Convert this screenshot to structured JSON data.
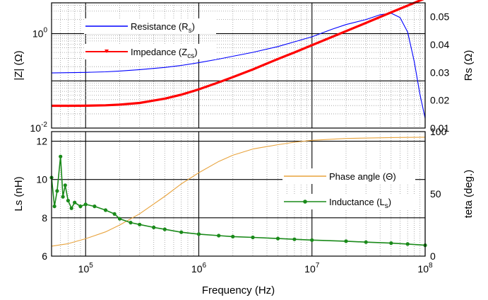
{
  "chart_data": [
    {
      "type": "line",
      "panel": "top",
      "xlabel": "Frequency (Hz)",
      "x_scale": "log",
      "xlim": [
        50000,
        100000000
      ],
      "ylabel_left": "|Z| (Ω)",
      "y_left_scale": "log",
      "y_left_range": [
        0.01,
        4.5
      ],
      "y_left_ticks": [
        {
          "base": "10",
          "exp": "0",
          "value": 1
        },
        {
          "base": "10",
          "exp": "-2",
          "value": 0.01
        }
      ],
      "ylabel_right": "Rs (Ω)",
      "y_right_range": [
        0.01,
        0.055
      ],
      "y_right_ticks": [
        "0.01",
        "0.02",
        "0.03",
        "0.04",
        "0.05"
      ],
      "grid": true,
      "legend_position": "top-left",
      "series": [
        {
          "name_main": "Resistance (R",
          "name_sub": "s",
          "name_end": ")",
          "axis": "right",
          "color": "#0000ff",
          "x": [
            50000,
            70000,
            100000,
            150000,
            200000,
            300000,
            500000,
            700000,
            1000000,
            1500000,
            2000000,
            3000000,
            5000000,
            7000000,
            10000000,
            15000000,
            20000000,
            30000000,
            40000000,
            50000000,
            60000000,
            70000000,
            80000000,
            90000000,
            100000000
          ],
          "y": [
            0.0298,
            0.0299,
            0.03,
            0.0302,
            0.0305,
            0.031,
            0.0318,
            0.0325,
            0.0335,
            0.0348,
            0.0358,
            0.0372,
            0.0393,
            0.041,
            0.0428,
            0.0455,
            0.0472,
            0.049,
            0.0507,
            0.0513,
            0.0497,
            0.0445,
            0.034,
            0.022,
            0.0135
          ]
        },
        {
          "name_main": "Impedance (Z",
          "name_sub": "cs",
          "name_end": ")",
          "axis": "left",
          "color": "#ff0000",
          "x": [
            50000,
            70000,
            100000,
            150000,
            200000,
            300000,
            500000,
            700000,
            1000000,
            1500000,
            2000000,
            3000000,
            5000000,
            7000000,
            10000000,
            20000000,
            30000000,
            50000000,
            70000000,
            100000000
          ],
          "y": [
            0.0297,
            0.0297,
            0.0298,
            0.0304,
            0.0313,
            0.034,
            0.042,
            0.051,
            0.066,
            0.093,
            0.12,
            0.175,
            0.29,
            0.4,
            0.57,
            1.13,
            1.69,
            2.82,
            3.94,
            5.6
          ]
        }
      ]
    },
    {
      "type": "line",
      "panel": "bottom",
      "xlabel": "Frequency (Hz)",
      "x_scale": "log",
      "xlim": [
        50000,
        100000000
      ],
      "x_ticks": [
        {
          "base": "10",
          "exp": "5",
          "value": 100000
        },
        {
          "base": "10",
          "exp": "6",
          "value": 1000000
        },
        {
          "base": "10",
          "exp": "7",
          "value": 10000000
        },
        {
          "base": "10",
          "exp": "8",
          "value": 100000000
        }
      ],
      "ylabel_left": "Ls (nH)",
      "y_left_range": [
        6,
        12.5
      ],
      "y_left_ticks": [
        "6",
        "8",
        "10",
        "12"
      ],
      "ylabel_right": "teta (deg.)",
      "y_right_range": [
        0,
        100
      ],
      "y_right_ticks": [
        "0",
        "50",
        "100"
      ],
      "grid": true,
      "legend_position": "center-right",
      "series": [
        {
          "name_main": "Phase angle (Θ)",
          "name_sub": "",
          "name_end": "",
          "axis": "right",
          "color": "#e8a33d",
          "x": [
            50000,
            70000,
            100000,
            150000,
            200000,
            300000,
            500000,
            700000,
            1000000,
            1500000,
            2000000,
            3000000,
            5000000,
            7000000,
            10000000,
            20000000,
            50000000,
            100000000
          ],
          "y": [
            8,
            10,
            14,
            19.5,
            25,
            34,
            48,
            58,
            67,
            76,
            81,
            86,
            89.5,
            91.5,
            93,
            94.5,
            95.2,
            95.5
          ]
        },
        {
          "name_main": "Inductance (L",
          "name_sub": "s",
          "name_end": ")",
          "axis": "left",
          "color": "#1a8a1a",
          "x": [
            50000,
            53000,
            56000,
            60000,
            63000,
            66000,
            70000,
            75000,
            80000,
            90000,
            100000,
            120000,
            150000,
            180000,
            200000,
            250000,
            300000,
            400000,
            500000,
            700000,
            1000000,
            1500000,
            2000000,
            3000000,
            5000000,
            7000000,
            10000000,
            20000000,
            30000000,
            50000000,
            70000000,
            100000000
          ],
          "y": [
            10.1,
            8.6,
            9.4,
            11.2,
            9.1,
            9.7,
            8.9,
            8.5,
            8.8,
            8.6,
            8.7,
            8.6,
            8.4,
            8.2,
            7.95,
            7.75,
            7.65,
            7.5,
            7.4,
            7.25,
            7.15,
            7.07,
            7.02,
            6.98,
            6.92,
            6.88,
            6.84,
            6.78,
            6.73,
            6.68,
            6.63,
            6.57
          ]
        }
      ]
    }
  ]
}
